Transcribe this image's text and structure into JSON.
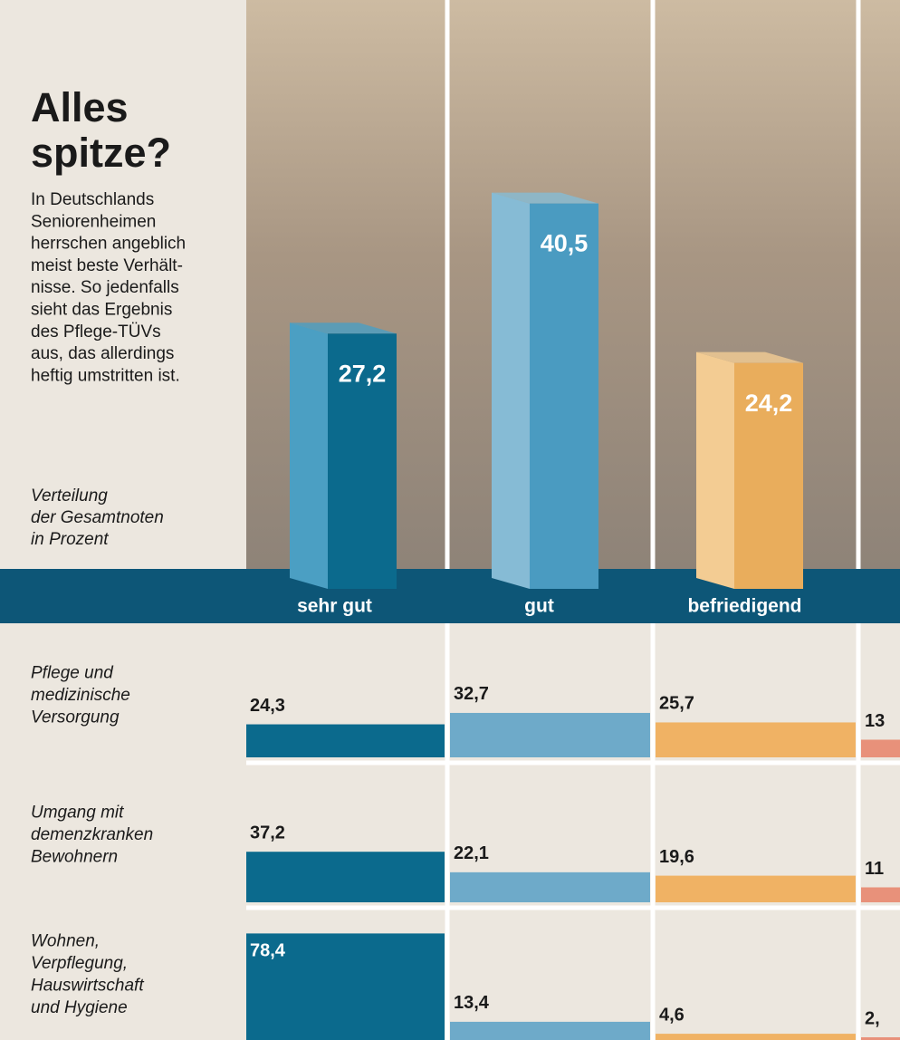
{
  "chart_data": [
    {
      "type": "bar3d",
      "title": [
        "Alles",
        "spitze?"
      ],
      "description": [
        "In Deutschlands",
        "Seniorenheimen",
        "herrschen angeblich",
        "meist beste Verhält-",
        "nisse. So jedenfalls",
        "sieht das Ergebnis",
        "des Pflege-TÜVs",
        "aus, das allerdings",
        "heftig umstritten ist."
      ],
      "note": [
        "Verteilung",
        "der Gesamtnoten",
        "in Prozent"
      ],
      "categories": [
        "sehr gut",
        "gut",
        "befriedigend"
      ],
      "values": [
        27.2,
        40.5,
        24.2
      ],
      "value_labels": [
        "27,2",
        "40,5",
        "24,2"
      ],
      "colors": [
        "#0b6a8d",
        "#4a9bc1",
        "#e9ad5c"
      ]
    },
    {
      "type": "rowbars",
      "rows": [
        [
          "Pflege und",
          "medizinische",
          "Versorgung"
        ],
        [
          "Umgang mit",
          "demenzkranken",
          "Bewohnern"
        ],
        [
          "Wohnen,",
          "Verpflegung,",
          "Hauswirtschaft",
          "und Hygiene"
        ]
      ],
      "series": [
        {
          "color": "#0b6a8d",
          "values": [
            24.3,
            37.2,
            78.4
          ],
          "value_labels": [
            "24,3",
            "37,2",
            "78,4"
          ]
        },
        {
          "color": "#6eaac9",
          "values": [
            32.7,
            22.1,
            13.4
          ],
          "value_labels": [
            "32,7",
            "22,1",
            "13,4"
          ]
        },
        {
          "color": "#f0b264",
          "values": [
            25.7,
            19.6,
            4.6
          ],
          "value_labels": [
            "25,7",
            "19,6",
            "4,6"
          ]
        },
        {
          "color": "#e8917a",
          "values": [
            13,
            11,
            2
          ],
          "value_labels": [
            "13",
            "11",
            "2,"
          ]
        }
      ]
    }
  ]
}
